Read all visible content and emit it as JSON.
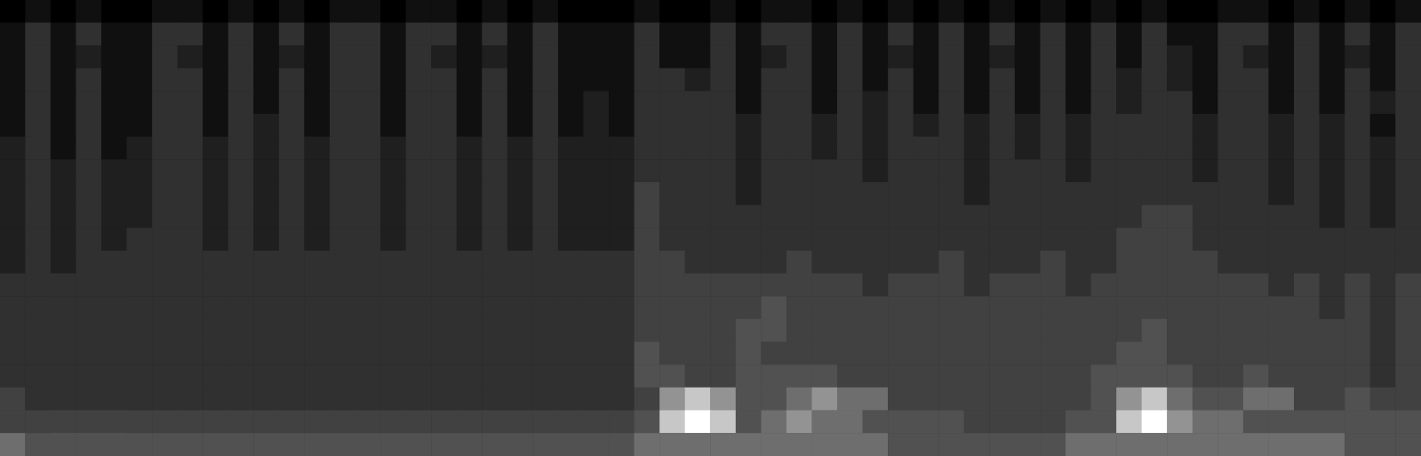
{
  "chart_data": {
    "type": "heatmap",
    "tick_labels": false,
    "color_range": [
      0,
      9
    ],
    "values": [
      [
        0,
        1,
        0,
        1,
        0,
        0,
        1,
        1,
        0,
        1,
        0,
        1,
        0,
        1,
        1,
        0,
        1,
        1,
        0,
        1,
        0,
        1,
        0,
        0,
        0,
        1,
        0,
        0,
        1,
        0,
        1,
        1,
        0,
        1,
        0,
        1,
        0,
        1,
        0,
        1,
        0,
        1,
        0,
        1,
        0,
        1,
        0,
        0,
        1,
        1,
        0,
        1,
        0,
        1,
        0,
        1
      ],
      [
        1,
        3,
        1,
        3,
        1,
        1,
        3,
        3,
        1,
        3,
        1,
        3,
        1,
        3,
        3,
        1,
        3,
        3,
        1,
        3,
        1,
        3,
        1,
        1,
        1,
        3,
        1,
        1,
        3,
        1,
        3,
        3,
        1,
        3,
        1,
        3,
        1,
        3,
        1,
        3,
        1,
        3,
        1,
        3,
        1,
        3,
        1,
        1,
        3,
        3,
        1,
        3,
        1,
        3,
        1,
        3
      ],
      [
        1,
        3,
        1,
        2,
        1,
        1,
        3,
        2,
        1,
        3,
        1,
        2,
        1,
        3,
        3,
        1,
        3,
        2,
        1,
        2,
        1,
        3,
        1,
        1,
        1,
        3,
        1,
        1,
        3,
        1,
        2,
        3,
        1,
        3,
        1,
        2,
        1,
        3,
        1,
        2,
        1,
        3,
        1,
        3,
        1,
        3,
        2,
        1,
        3,
        2,
        1,
        3,
        1,
        2,
        1,
        3
      ],
      [
        1,
        3,
        1,
        3,
        1,
        1,
        3,
        3,
        1,
        3,
        1,
        3,
        1,
        3,
        3,
        1,
        3,
        3,
        1,
        3,
        1,
        3,
        1,
        1,
        1,
        3,
        3,
        2,
        3,
        1,
        3,
        3,
        1,
        3,
        1,
        3,
        1,
        3,
        1,
        3,
        1,
        3,
        1,
        3,
        2,
        3,
        2,
        1,
        3,
        3,
        1,
        3,
        1,
        3,
        1,
        3
      ],
      [
        1,
        3,
        1,
        3,
        1,
        1,
        3,
        3,
        1,
        3,
        1,
        3,
        1,
        3,
        3,
        1,
        3,
        3,
        1,
        3,
        1,
        3,
        1,
        2,
        1,
        3,
        3,
        3,
        3,
        1,
        3,
        3,
        1,
        3,
        2,
        3,
        1,
        3,
        1,
        3,
        1,
        3,
        1,
        3,
        2,
        3,
        3,
        1,
        3,
        3,
        1,
        3,
        1,
        3,
        2,
        3
      ],
      [
        1,
        3,
        1,
        3,
        1,
        1,
        3,
        3,
        1,
        3,
        2,
        3,
        1,
        3,
        3,
        1,
        3,
        3,
        1,
        3,
        1,
        3,
        1,
        2,
        1,
        3,
        3,
        3,
        3,
        2,
        3,
        3,
        2,
        3,
        2,
        3,
        2,
        3,
        2,
        3,
        2,
        3,
        2,
        3,
        3,
        3,
        3,
        2,
        3,
        3,
        2,
        3,
        2,
        3,
        1,
        3
      ],
      [
        2,
        3,
        1,
        3,
        1,
        2,
        3,
        3,
        2,
        3,
        2,
        3,
        2,
        3,
        3,
        2,
        3,
        3,
        2,
        3,
        2,
        3,
        2,
        2,
        2,
        3,
        3,
        3,
        3,
        2,
        3,
        3,
        2,
        3,
        2,
        3,
        3,
        3,
        2,
        3,
        2,
        3,
        2,
        3,
        3,
        3,
        3,
        2,
        3,
        3,
        2,
        3,
        2,
        3,
        2,
        3
      ],
      [
        2,
        3,
        2,
        3,
        2,
        2,
        3,
        3,
        2,
        3,
        2,
        3,
        2,
        3,
        3,
        2,
        3,
        3,
        2,
        3,
        2,
        3,
        2,
        2,
        2,
        3,
        3,
        3,
        3,
        2,
        3,
        3,
        3,
        3,
        2,
        3,
        3,
        3,
        2,
        3,
        3,
        3,
        2,
        3,
        3,
        3,
        3,
        2,
        3,
        3,
        2,
        3,
        2,
        3,
        2,
        3
      ],
      [
        2,
        3,
        2,
        3,
        2,
        2,
        3,
        3,
        2,
        3,
        2,
        3,
        2,
        3,
        3,
        2,
        3,
        3,
        2,
        3,
        2,
        3,
        2,
        2,
        2,
        4,
        3,
        3,
        3,
        2,
        3,
        3,
        3,
        3,
        3,
        3,
        3,
        3,
        2,
        3,
        3,
        3,
        3,
        3,
        3,
        3,
        3,
        3,
        3,
        3,
        2,
        3,
        2,
        3,
        2,
        3
      ],
      [
        2,
        3,
        2,
        3,
        2,
        2,
        3,
        3,
        2,
        3,
        2,
        3,
        2,
        3,
        3,
        2,
        3,
        3,
        2,
        3,
        2,
        3,
        2,
        2,
        2,
        4,
        3,
        3,
        3,
        3,
        3,
        3,
        3,
        3,
        3,
        3,
        3,
        3,
        3,
        3,
        3,
        3,
        3,
        3,
        3,
        4,
        4,
        3,
        3,
        3,
        3,
        3,
        2,
        3,
        2,
        3
      ],
      [
        2,
        3,
        2,
        3,
        2,
        3,
        3,
        3,
        2,
        3,
        2,
        3,
        2,
        3,
        3,
        2,
        3,
        3,
        2,
        3,
        2,
        3,
        2,
        2,
        2,
        4,
        3,
        3,
        3,
        3,
        3,
        3,
        3,
        3,
        3,
        3,
        3,
        3,
        3,
        3,
        3,
        3,
        3,
        3,
        4,
        4,
        4,
        3,
        3,
        3,
        3,
        3,
        3,
        3,
        3,
        3
      ],
      [
        2,
        3,
        2,
        3,
        3,
        3,
        3,
        3,
        3,
        3,
        3,
        3,
        3,
        3,
        3,
        3,
        3,
        3,
        3,
        3,
        3,
        3,
        3,
        3,
        3,
        4,
        4,
        3,
        3,
        3,
        3,
        4,
        3,
        3,
        3,
        3,
        3,
        4,
        3,
        3,
        3,
        4,
        3,
        3,
        4,
        4,
        4,
        4,
        3,
        3,
        3,
        3,
        3,
        3,
        3,
        3
      ],
      [
        3,
        3,
        3,
        3,
        3,
        3,
        3,
        3,
        3,
        3,
        3,
        3,
        3,
        3,
        3,
        3,
        3,
        3,
        3,
        3,
        3,
        3,
        3,
        3,
        3,
        4,
        4,
        4,
        4,
        4,
        4,
        4,
        4,
        4,
        3,
        4,
        4,
        4,
        3,
        4,
        4,
        4,
        3,
        4,
        4,
        4,
        4,
        4,
        4,
        4,
        3,
        4,
        3,
        4,
        3,
        4
      ],
      [
        3,
        3,
        3,
        3,
        3,
        3,
        3,
        3,
        3,
        3,
        3,
        3,
        3,
        3,
        3,
        3,
        3,
        3,
        3,
        3,
        3,
        3,
        3,
        3,
        3,
        4,
        4,
        4,
        4,
        4,
        5,
        4,
        4,
        4,
        4,
        4,
        4,
        4,
        4,
        4,
        4,
        4,
        4,
        4,
        4,
        4,
        4,
        4,
        4,
        4,
        4,
        4,
        3,
        4,
        3,
        4
      ],
      [
        3,
        3,
        3,
        3,
        3,
        3,
        3,
        3,
        3,
        3,
        3,
        3,
        3,
        3,
        3,
        3,
        3,
        3,
        3,
        3,
        3,
        3,
        3,
        3,
        3,
        4,
        4,
        4,
        4,
        5,
        5,
        4,
        4,
        4,
        4,
        4,
        4,
        4,
        4,
        4,
        4,
        4,
        4,
        4,
        4,
        5,
        4,
        4,
        4,
        4,
        4,
        4,
        4,
        4,
        3,
        4
      ],
      [
        3,
        3,
        3,
        3,
        3,
        3,
        3,
        3,
        3,
        3,
        3,
        3,
        3,
        3,
        3,
        3,
        3,
        3,
        3,
        3,
        3,
        3,
        3,
        3,
        3,
        5,
        4,
        4,
        4,
        5,
        4,
        4,
        4,
        4,
        4,
        4,
        4,
        4,
        4,
        4,
        4,
        4,
        4,
        4,
        5,
        5,
        4,
        4,
        4,
        4,
        4,
        4,
        4,
        4,
        3,
        4
      ],
      [
        3,
        3,
        3,
        3,
        3,
        3,
        3,
        3,
        3,
        3,
        3,
        3,
        3,
        3,
        3,
        3,
        3,
        3,
        3,
        3,
        3,
        3,
        3,
        3,
        3,
        5,
        5,
        4,
        4,
        5,
        5,
        5,
        5,
        4,
        4,
        4,
        4,
        4,
        4,
        4,
        4,
        4,
        4,
        5,
        5,
        5,
        5,
        4,
        4,
        5,
        4,
        4,
        4,
        4,
        3,
        4
      ],
      [
        4,
        3,
        3,
        3,
        3,
        3,
        3,
        3,
        3,
        3,
        3,
        3,
        3,
        3,
        3,
        3,
        3,
        3,
        3,
        3,
        3,
        3,
        3,
        3,
        3,
        4,
        7,
        8,
        7,
        5,
        5,
        6,
        7,
        6,
        6,
        4,
        4,
        4,
        4,
        4,
        4,
        4,
        4,
        5,
        7,
        8,
        6,
        5,
        5,
        6,
        6,
        4,
        4,
        5,
        4,
        4
      ],
      [
        4,
        4,
        4,
        4,
        4,
        4,
        4,
        4,
        4,
        4,
        4,
        4,
        4,
        4,
        4,
        4,
        4,
        4,
        4,
        4,
        4,
        4,
        4,
        4,
        4,
        5,
        8,
        9,
        8,
        5,
        6,
        7,
        6,
        6,
        5,
        5,
        5,
        5,
        4,
        4,
        4,
        4,
        5,
        5,
        8,
        9,
        7,
        6,
        6,
        5,
        5,
        5,
        5,
        5,
        5,
        5
      ],
      [
        6,
        5,
        5,
        5,
        5,
        5,
        5,
        5,
        5,
        5,
        5,
        5,
        5,
        5,
        5,
        5,
        5,
        5,
        5,
        5,
        5,
        5,
        5,
        5,
        5,
        6,
        6,
        6,
        6,
        6,
        6,
        6,
        6,
        6,
        6,
        5,
        5,
        5,
        5,
        5,
        5,
        5,
        6,
        6,
        6,
        6,
        6,
        6,
        6,
        6,
        6,
        6,
        6,
        5,
        5,
        5
      ]
    ]
  }
}
